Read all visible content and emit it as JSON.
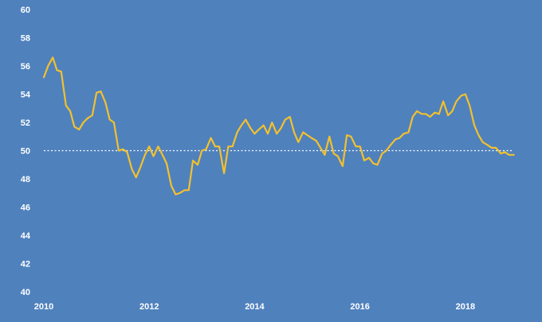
{
  "chart_data": {
    "type": "line",
    "title": "",
    "xlabel": "",
    "ylabel": "",
    "ylim": [
      40,
      60
    ],
    "xlim": [
      2010,
      2019
    ],
    "y_ticks": [
      60,
      58,
      56,
      54,
      52,
      50,
      48,
      46,
      44,
      42,
      40
    ],
    "x_ticks": [
      2010,
      2012,
      2014,
      2016,
      2018
    ],
    "reference_line": {
      "y": 50,
      "style": "dotted",
      "color": "#ffffff"
    },
    "grid": false,
    "legend": "none",
    "colors": {
      "background": "#4f81bd",
      "line": "#f2c12e",
      "text": "#ffffff"
    },
    "series": [
      {
        "x": [
          2010.0,
          2010.08,
          2010.17,
          2010.25,
          2010.33,
          2010.42,
          2010.5,
          2010.58,
          2010.67,
          2010.75,
          2010.83,
          2010.92,
          2011.0,
          2011.08,
          2011.17,
          2011.25,
          2011.33,
          2011.42,
          2011.5,
          2011.58,
          2011.67,
          2011.75,
          2011.83,
          2011.92,
          2012.0,
          2012.08,
          2012.17,
          2012.25,
          2012.33,
          2012.42,
          2012.5,
          2012.58,
          2012.67,
          2012.75,
          2012.83,
          2012.92,
          2013.0,
          2013.08,
          2013.17,
          2013.25,
          2013.33,
          2013.42,
          2013.5,
          2013.58,
          2013.67,
          2013.75,
          2013.83,
          2013.92,
          2014.0,
          2014.08,
          2014.17,
          2014.25,
          2014.33,
          2014.42,
          2014.5,
          2014.58,
          2014.67,
          2014.75,
          2014.83,
          2014.92,
          2015.0,
          2015.08,
          2015.17,
          2015.25,
          2015.33,
          2015.42,
          2015.5,
          2015.58,
          2015.67,
          2015.75,
          2015.83,
          2015.92,
          2016.0,
          2016.08,
          2016.17,
          2016.25,
          2016.33,
          2016.42,
          2016.5,
          2016.58,
          2016.67,
          2016.75,
          2016.83,
          2016.92,
          2017.0,
          2017.08,
          2017.17,
          2017.25,
          2017.33,
          2017.42,
          2017.5,
          2017.58,
          2017.67,
          2017.75,
          2017.83,
          2017.92,
          2018.0,
          2018.08,
          2018.17,
          2018.25,
          2018.33,
          2018.42,
          2018.5,
          2018.58,
          2018.67,
          2018.75,
          2018.83,
          2018.92
        ],
        "y": [
          55.2,
          56.0,
          56.6,
          55.7,
          55.6,
          53.2,
          52.8,
          51.7,
          51.5,
          52.0,
          52.3,
          52.5,
          54.1,
          54.2,
          53.4,
          52.2,
          52.0,
          50.0,
          50.1,
          49.9,
          48.7,
          48.1,
          48.8,
          49.7,
          50.3,
          49.6,
          50.3,
          49.7,
          49.1,
          47.5,
          46.9,
          47.0,
          47.2,
          47.2,
          49.3,
          49.0,
          50.0,
          50.1,
          50.9,
          50.3,
          50.3,
          48.4,
          50.3,
          50.3,
          51.3,
          51.8,
          52.2,
          51.6,
          51.2,
          51.5,
          51.8,
          51.2,
          52.0,
          51.2,
          51.6,
          52.2,
          52.4,
          51.3,
          50.6,
          51.3,
          51.1,
          50.9,
          50.7,
          50.2,
          49.7,
          51.0,
          49.8,
          49.6,
          48.9,
          51.1,
          51.0,
          50.3,
          50.3,
          49.3,
          49.5,
          49.1,
          49.0,
          49.8,
          50.0,
          50.4,
          50.8,
          50.9,
          51.2,
          51.3,
          52.4,
          52.8,
          52.6,
          52.6,
          52.4,
          52.7,
          52.6,
          53.5,
          52.5,
          52.8,
          53.5,
          53.9,
          54.0,
          53.2,
          51.8,
          51.1,
          50.6,
          50.4,
          50.2,
          50.2,
          49.8,
          49.9,
          49.7,
          49.7
        ]
      }
    ]
  }
}
